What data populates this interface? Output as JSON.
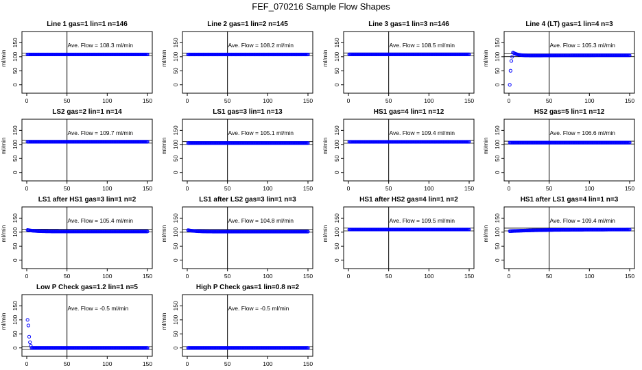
{
  "title": "FEF_070216  Sample Flow Shapes",
  "y_axis_label": "ml/min",
  "x_ticks": [
    0,
    50,
    100,
    150
  ],
  "y_ticks": [
    0,
    50,
    100,
    150
  ],
  "chart_data": [
    {
      "type": "scatter",
      "title": "Line 1 gas=1 lin=1 n=146",
      "annotation": "Ave. Flow =  108.3  ml/min",
      "mean": 108.3,
      "ylim": [
        -30,
        190
      ],
      "xlim": [
        0,
        150
      ],
      "marker_color": "#0000ff",
      "shape": "flat"
    },
    {
      "type": "scatter",
      "title": "Line 2 gas=1 lin=2 n=145",
      "annotation": "Ave. Flow =  108.2  ml/min",
      "mean": 108.2,
      "ylim": [
        -30,
        190
      ],
      "xlim": [
        0,
        150
      ],
      "marker_color": "#0000ff",
      "shape": "flat"
    },
    {
      "type": "scatter",
      "title": "Line 3 gas=1 lin=3 n=146",
      "annotation": "Ave. Flow =  108.5  ml/min",
      "mean": 108.5,
      "ylim": [
        -30,
        190
      ],
      "xlim": [
        0,
        150
      ],
      "marker_color": "#0000ff",
      "shape": "flat"
    },
    {
      "type": "scatter",
      "title": "Line 4 (LT) gas=1 lin=4 n=3",
      "annotation": "Ave. Flow =  105.3  ml/min",
      "mean": 105.3,
      "ylim": [
        -30,
        190
      ],
      "xlim": [
        0,
        150
      ],
      "marker_color": "#0000ff",
      "shape": "overshoot"
    },
    {
      "type": "scatter",
      "title": "LS2 gas=2 lin=1 n=14",
      "annotation": "Ave. Flow =  109.7  ml/min",
      "mean": 109.7,
      "ylim": [
        -30,
        190
      ],
      "xlim": [
        0,
        150
      ],
      "marker_color": "#0000ff",
      "shape": "flat"
    },
    {
      "type": "scatter",
      "title": "LS1 gas=3 lin=1 n=13",
      "annotation": "Ave. Flow =  105.1  ml/min",
      "mean": 105.1,
      "ylim": [
        -30,
        190
      ],
      "xlim": [
        0,
        150
      ],
      "marker_color": "#0000ff",
      "shape": "flat"
    },
    {
      "type": "scatter",
      "title": "HS1 gas=4 lin=1 n=12",
      "annotation": "Ave. Flow =  109.4  ml/min",
      "mean": 109.4,
      "ylim": [
        -30,
        190
      ],
      "xlim": [
        0,
        150
      ],
      "marker_color": "#0000ff",
      "shape": "flat"
    },
    {
      "type": "scatter",
      "title": "HS2 gas=5 lin=1 n=12",
      "annotation": "Ave. Flow =  106.6  ml/min",
      "mean": 106.6,
      "ylim": [
        -30,
        190
      ],
      "xlim": [
        0,
        150
      ],
      "marker_color": "#0000ff",
      "shape": "flat"
    },
    {
      "type": "scatter",
      "title": "LS1 after HS1 gas=3 lin=1 n=2",
      "annotation": "Ave. Flow =  105.4  ml/min",
      "mean": 105.4,
      "ylim": [
        -30,
        190
      ],
      "xlim": [
        0,
        150
      ],
      "marker_color": "#0000ff",
      "shape": "decay"
    },
    {
      "type": "scatter",
      "title": "LS1 after LS2 gas=3 lin=1 n=3",
      "annotation": "Ave. Flow =  104.8  ml/min",
      "mean": 104.8,
      "ylim": [
        -30,
        190
      ],
      "xlim": [
        0,
        150
      ],
      "marker_color": "#0000ff",
      "shape": "decay"
    },
    {
      "type": "scatter",
      "title": "HS1 after HS2 gas=4 lin=1 n=2",
      "annotation": "Ave. Flow =  109.5  ml/min",
      "mean": 109.5,
      "ylim": [
        -30,
        190
      ],
      "xlim": [
        0,
        150
      ],
      "marker_color": "#0000ff",
      "shape": "flat"
    },
    {
      "type": "scatter",
      "title": "HS1 after LS1 gas=4 lin=1 n=3",
      "annotation": "Ave. Flow =  109.4  ml/min",
      "mean": 109.4,
      "ylim": [
        -30,
        190
      ],
      "xlim": [
        0,
        150
      ],
      "marker_color": "#0000ff",
      "shape": "rise"
    },
    {
      "type": "scatter",
      "title": "Low P Check gas=1.2 lin=1 n=5",
      "annotation": "Ave. Flow =  -0.5  ml/min",
      "mean": -0.5,
      "ylim": [
        -30,
        190
      ],
      "xlim": [
        0,
        150
      ],
      "marker_color": "#0000ff",
      "shape": "initial_spike"
    },
    {
      "type": "scatter",
      "title": "High P Check gas=1 lin=0.8 n=2",
      "annotation": "Ave. Flow =  -0.5  ml/min",
      "mean": -0.5,
      "ylim": [
        -30,
        190
      ],
      "xlim": [
        0,
        150
      ],
      "marker_color": "#0000ff",
      "shape": "zero"
    }
  ]
}
